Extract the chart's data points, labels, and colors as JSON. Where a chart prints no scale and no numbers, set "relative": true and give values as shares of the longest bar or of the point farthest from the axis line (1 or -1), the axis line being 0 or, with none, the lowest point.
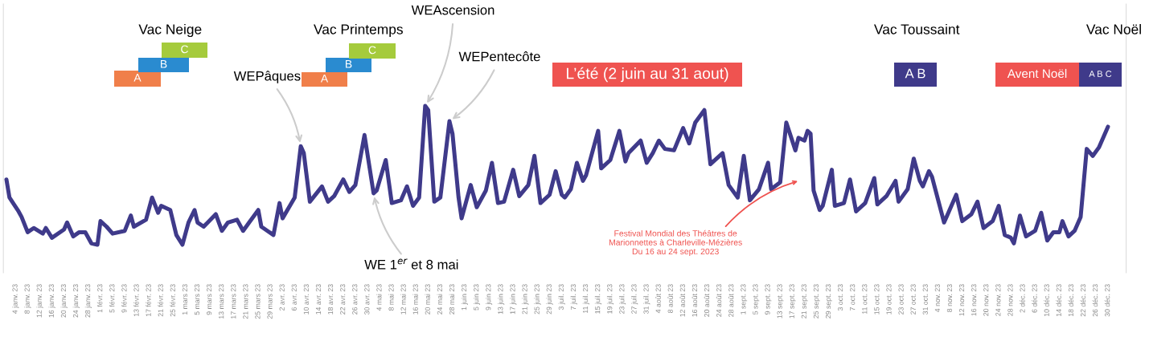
{
  "chart_data": {
    "type": "line",
    "relative": true,
    "x": [
      "2023-01-01",
      "2023-01-02",
      "2023-01-05",
      "2023-01-06",
      "2023-01-08",
      "2023-01-10",
      "2023-01-13",
      "2023-01-14",
      "2023-01-16",
      "2023-01-20",
      "2023-01-21",
      "2023-01-23",
      "2023-01-25",
      "2023-01-27",
      "2023-01-29",
      "2023-01-31",
      "2023-02-01",
      "2023-02-03",
      "2023-02-05",
      "2023-02-09",
      "2023-02-11",
      "2023-02-12",
      "2023-02-16",
      "2023-02-18",
      "2023-02-20",
      "2023-02-21",
      "2023-02-24",
      "2023-02-26",
      "2023-02-28",
      "2023-03-02",
      "2023-03-04",
      "2023-03-05",
      "2023-03-07",
      "2023-03-11",
      "2023-03-13",
      "2023-03-15",
      "2023-03-18",
      "2023-03-20",
      "2023-03-22",
      "2023-03-25",
      "2023-03-26",
      "2023-03-28",
      "2023-03-30",
      "2023-04-01",
      "2023-04-02",
      "2023-04-06",
      "2023-04-08",
      "2023-04-09",
      "2023-04-11",
      "2023-04-15",
      "2023-04-17",
      "2023-04-19",
      "2023-04-22",
      "2023-04-24",
      "2023-04-26",
      "2023-04-29",
      "2023-05-02",
      "2023-05-03",
      "2023-05-06",
      "2023-05-08",
      "2023-05-11",
      "2023-05-13",
      "2023-05-15",
      "2023-05-17",
      "2023-05-19",
      "2023-05-20",
      "2023-05-22",
      "2023-05-24",
      "2023-05-27",
      "2023-05-28",
      "2023-05-30",
      "2023-05-31",
      "2023-06-03",
      "2023-06-05",
      "2023-06-08",
      "2023-06-10",
      "2023-06-12",
      "2023-06-14",
      "2023-06-17",
      "2023-06-19",
      "2023-06-22",
      "2023-06-24",
      "2023-06-26",
      "2023-06-29",
      "2023-07-01",
      "2023-07-03",
      "2023-07-04",
      "2023-07-06",
      "2023-07-08",
      "2023-07-10",
      "2023-07-11",
      "2023-07-15",
      "2023-07-16",
      "2023-07-19",
      "2023-07-22",
      "2023-07-24",
      "2023-07-25",
      "2023-07-29",
      "2023-07-31",
      "2023-08-02",
      "2023-08-04",
      "2023-08-06",
      "2023-08-09",
      "2023-08-12",
      "2023-08-14",
      "2023-08-16",
      "2023-08-19",
      "2023-08-21",
      "2023-08-25",
      "2023-08-27",
      "2023-08-30",
      "2023-09-01",
      "2023-09-03",
      "2023-09-06",
      "2023-09-09",
      "2023-09-10",
      "2023-09-13",
      "2023-09-15",
      "2023-09-18",
      "2023-09-19",
      "2023-09-21",
      "2023-09-22",
      "2023-09-23",
      "2023-09-24",
      "2023-09-26",
      "2023-09-27",
      "2023-09-30",
      "2023-10-01",
      "2023-10-04",
      "2023-10-06",
      "2023-10-08",
      "2023-10-11",
      "2023-10-14",
      "2023-10-15",
      "2023-10-18",
      "2023-10-21",
      "2023-10-22",
      "2023-10-25",
      "2023-10-27",
      "2023-10-29",
      "2023-10-30",
      "2023-11-01",
      "2023-11-02",
      "2023-11-06",
      "2023-11-07",
      "2023-11-10",
      "2023-11-12",
      "2023-11-15",
      "2023-11-17",
      "2023-11-19",
      "2023-11-22",
      "2023-11-24",
      "2023-11-26",
      "2023-11-28",
      "2023-11-29",
      "2023-12-01",
      "2023-12-03",
      "2023-12-06",
      "2023-12-08",
      "2023-12-10",
      "2023-12-12",
      "2023-12-14",
      "2023-12-15",
      "2023-12-17",
      "2023-12-19",
      "2023-12-21",
      "2023-12-23",
      "2023-12-25",
      "2023-12-27",
      "2023-12-30"
    ],
    "series": [
      {
        "color": "#3f3a8a",
        "values": [
          0.47,
          0.34,
          0.24,
          0.2,
          0.09,
          0.12,
          0.08,
          0.12,
          0.05,
          0.11,
          0.16,
          0.06,
          0.09,
          0.09,
          0.01,
          0.0,
          0.17,
          0.13,
          0.08,
          0.1,
          0.21,
          0.13,
          0.18,
          0.34,
          0.23,
          0.28,
          0.25,
          0.07,
          0.0,
          0.16,
          0.25,
          0.16,
          0.13,
          0.22,
          0.1,
          0.16,
          0.18,
          0.1,
          0.16,
          0.25,
          0.13,
          0.1,
          0.07,
          0.3,
          0.19,
          0.34,
          0.71,
          0.66,
          0.31,
          0.42,
          0.31,
          0.35,
          0.47,
          0.38,
          0.43,
          0.79,
          0.37,
          0.39,
          0.61,
          0.3,
          0.32,
          0.42,
          0.28,
          0.34,
          1.0,
          0.97,
          0.31,
          0.34,
          0.89,
          0.8,
          0.34,
          0.19,
          0.43,
          0.27,
          0.39,
          0.59,
          0.3,
          0.31,
          0.54,
          0.35,
          0.43,
          0.64,
          0.3,
          0.36,
          0.53,
          0.36,
          0.34,
          0.4,
          0.59,
          0.46,
          0.5,
          0.82,
          0.55,
          0.61,
          0.82,
          0.6,
          0.66,
          0.75,
          0.59,
          0.66,
          0.75,
          0.69,
          0.68,
          0.84,
          0.73,
          0.88,
          0.97,
          0.58,
          0.66,
          0.43,
          0.34,
          0.64,
          0.32,
          0.4,
          0.59,
          0.4,
          0.45,
          0.88,
          0.68,
          0.77,
          0.75,
          0.82,
          0.8,
          0.39,
          0.25,
          0.28,
          0.54,
          0.28,
          0.3,
          0.47,
          0.24,
          0.3,
          0.48,
          0.29,
          0.35,
          0.46,
          0.31,
          0.4,
          0.62,
          0.46,
          0.42,
          0.53,
          0.49,
          0.16,
          0.21,
          0.36,
          0.17,
          0.22,
          0.31,
          0.12,
          0.17,
          0.28,
          0.07,
          0.05,
          0.01,
          0.21,
          0.06,
          0.1,
          0.23,
          0.03,
          0.09,
          0.09,
          0.17,
          0.06,
          0.1,
          0.2,
          0.69,
          0.64,
          0.7,
          0.85
        ]
      }
    ],
    "xlim": [
      "2022-12-31",
      "2024-01-05"
    ],
    "xticks": [
      {
        "value": "2023-01-04",
        "label": "4 janv. 23"
      },
      {
        "value": "2023-01-08",
        "label": "8 janv. 23"
      },
      {
        "value": "2023-01-12",
        "label": "12 janv. 23"
      },
      {
        "value": "2023-01-16",
        "label": "16 janv. 23"
      },
      {
        "value": "2023-01-20",
        "label": "20 janv. 23"
      },
      {
        "value": "2023-01-24",
        "label": "24 janv. 23"
      },
      {
        "value": "2023-01-28",
        "label": "28 janv. 23"
      },
      {
        "value": "2023-02-01",
        "label": "1 févr. 23"
      },
      {
        "value": "2023-02-05",
        "label": "5 févr. 23"
      },
      {
        "value": "2023-02-09",
        "label": "9 févr. 23"
      },
      {
        "value": "2023-02-13",
        "label": "13 févr. 23"
      },
      {
        "value": "2023-02-17",
        "label": "17 févr. 23"
      },
      {
        "value": "2023-02-21",
        "label": "21 févr. 23"
      },
      {
        "value": "2023-02-25",
        "label": "25 févr. 23"
      },
      {
        "value": "2023-03-01",
        "label": "1 mars 23"
      },
      {
        "value": "2023-03-05",
        "label": "5 mars 23"
      },
      {
        "value": "2023-03-09",
        "label": "9 mars 23"
      },
      {
        "value": "2023-03-13",
        "label": "13 mars 23"
      },
      {
        "value": "2023-03-17",
        "label": "17 mars 23"
      },
      {
        "value": "2023-03-21",
        "label": "21 mars 23"
      },
      {
        "value": "2023-03-25",
        "label": "25 mars 23"
      },
      {
        "value": "2023-03-29",
        "label": "29 mars 23"
      },
      {
        "value": "2023-04-02",
        "label": "2 avr. 23"
      },
      {
        "value": "2023-04-06",
        "label": "6 avr. 23"
      },
      {
        "value": "2023-04-10",
        "label": "10 avr. 23"
      },
      {
        "value": "2023-04-14",
        "label": "14 avr. 23"
      },
      {
        "value": "2023-04-18",
        "label": "18 avr. 23"
      },
      {
        "value": "2023-04-22",
        "label": "22 avr. 23"
      },
      {
        "value": "2023-04-26",
        "label": "26 avr. 23"
      },
      {
        "value": "2023-04-30",
        "label": "30 avr. 23"
      },
      {
        "value": "2023-05-04",
        "label": "4 mai 23"
      },
      {
        "value": "2023-05-08",
        "label": "8 mai 23"
      },
      {
        "value": "2023-05-12",
        "label": "12 mai 23"
      },
      {
        "value": "2023-05-16",
        "label": "16 mai 23"
      },
      {
        "value": "2023-05-20",
        "label": "20 mai 23"
      },
      {
        "value": "2023-05-24",
        "label": "24 mai 23"
      },
      {
        "value": "2023-05-28",
        "label": "28 mai 23"
      },
      {
        "value": "2023-06-01",
        "label": "1 juin 23"
      },
      {
        "value": "2023-06-05",
        "label": "5 juin 23"
      },
      {
        "value": "2023-06-09",
        "label": "9 juin 23"
      },
      {
        "value": "2023-06-13",
        "label": "13 juin 23"
      },
      {
        "value": "2023-06-17",
        "label": "17 juin 23"
      },
      {
        "value": "2023-06-21",
        "label": "21 juin 23"
      },
      {
        "value": "2023-06-25",
        "label": "25 juin 23"
      },
      {
        "value": "2023-06-29",
        "label": "29 juin 23"
      },
      {
        "value": "2023-07-03",
        "label": "3 juil. 23"
      },
      {
        "value": "2023-07-07",
        "label": "7 juil. 23"
      },
      {
        "value": "2023-07-11",
        "label": "11 juil. 23"
      },
      {
        "value": "2023-07-15",
        "label": "15 juil. 23"
      },
      {
        "value": "2023-07-19",
        "label": "19 juil. 23"
      },
      {
        "value": "2023-07-23",
        "label": "23 juil. 23"
      },
      {
        "value": "2023-07-27",
        "label": "27 juil. 23"
      },
      {
        "value": "2023-07-31",
        "label": "31 juil. 23"
      },
      {
        "value": "2023-08-04",
        "label": "4 août 23"
      },
      {
        "value": "2023-08-08",
        "label": "8 août 23"
      },
      {
        "value": "2023-08-12",
        "label": "12 août 23"
      },
      {
        "value": "2023-08-16",
        "label": "16 août 23"
      },
      {
        "value": "2023-08-20",
        "label": "20 août 23"
      },
      {
        "value": "2023-08-24",
        "label": "24 août 23"
      },
      {
        "value": "2023-08-28",
        "label": "28 août 23"
      },
      {
        "value": "2023-09-01",
        "label": "1 sept. 23"
      },
      {
        "value": "2023-09-05",
        "label": "5 sept. 23"
      },
      {
        "value": "2023-09-09",
        "label": "9 sept. 23"
      },
      {
        "value": "2023-09-13",
        "label": "13 sept. 23"
      },
      {
        "value": "2023-09-17",
        "label": "17 sept. 23"
      },
      {
        "value": "2023-09-21",
        "label": "21 sept. 23"
      },
      {
        "value": "2023-09-25",
        "label": "25 sept. 23"
      },
      {
        "value": "2023-09-29",
        "label": "29 sept. 23"
      },
      {
        "value": "2023-10-03",
        "label": "3 oct. 23"
      },
      {
        "value": "2023-10-07",
        "label": "7 oct. 23"
      },
      {
        "value": "2023-10-11",
        "label": "11 oct. 23"
      },
      {
        "value": "2023-10-15",
        "label": "15 oct. 23"
      },
      {
        "value": "2023-10-19",
        "label": "19 oct. 23"
      },
      {
        "value": "2023-10-23",
        "label": "23 oct. 23"
      },
      {
        "value": "2023-10-27",
        "label": "27 oct. 23"
      },
      {
        "value": "2023-10-31",
        "label": "31 oct. 23"
      },
      {
        "value": "2023-11-04",
        "label": "4 nov. 23"
      },
      {
        "value": "2023-11-08",
        "label": "8 nov. 23"
      },
      {
        "value": "2023-11-12",
        "label": "12 nov. 23"
      },
      {
        "value": "2023-11-16",
        "label": "16 nov. 23"
      },
      {
        "value": "2023-11-20",
        "label": "20 nov. 23"
      },
      {
        "value": "2023-11-24",
        "label": "24 nov. 23"
      },
      {
        "value": "2023-11-28",
        "label": "28 nov. 23"
      },
      {
        "value": "2023-12-02",
        "label": "2 déc. 23"
      },
      {
        "value": "2023-12-06",
        "label": "6 déc. 23"
      },
      {
        "value": "2023-12-10",
        "label": "10 déc. 23"
      },
      {
        "value": "2023-12-14",
        "label": "14 déc. 23"
      },
      {
        "value": "2023-12-18",
        "label": "18 déc. 23"
      },
      {
        "value": "2023-12-22",
        "label": "22 déc. 23"
      },
      {
        "value": "2023-12-26",
        "label": "26 déc. 23"
      },
      {
        "value": "2023-12-30",
        "label": "30 déc. 23"
      }
    ],
    "annotations": [
      "Vac Neige",
      "Vac Printemps",
      "Vac Toussaint",
      "Vac Noël",
      "A",
      "B",
      "C",
      "A",
      "B",
      "C",
      "L’été (2 juin au 31 aout)",
      "A B",
      "Avent Noël",
      "A B C",
      {
        "text": "WEPâques",
        "x": "2023-04-08",
        "y": 0.71
      },
      {
        "text": "WEAscension",
        "x": "2023-05-19",
        "y": 1.0
      },
      {
        "text": "WEPentecôte",
        "x": "2023-05-27",
        "y": 0.89
      },
      {
        "text": "WE 1$^{er}$ et 8 mai",
        "x": "2023-05-02",
        "y": 0.37
      },
      "Festival Mondial des Théâtres de\nMarionnettes à Charleville-Mézières\nDu 16 au 24 sept. 2023"
    ],
    "legend": false,
    "grid": false,
    "marker": "none",
    "line_style": "solid"
  }
}
